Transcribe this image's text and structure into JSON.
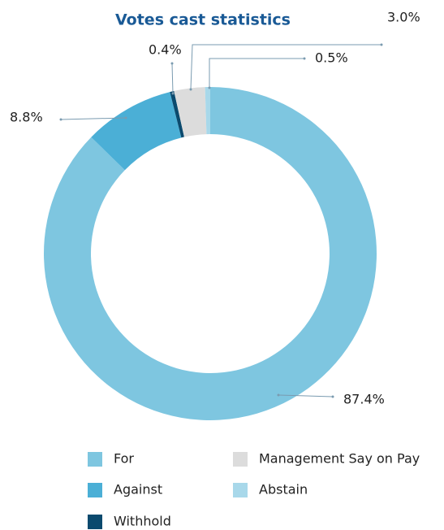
{
  "chart_data": {
    "type": "donut",
    "title": "Votes cast statistics",
    "categories": [
      "For",
      "Against",
      "Withhold",
      "Management Say on Pay",
      "Abstain"
    ],
    "values": [
      87.4,
      8.8,
      0.4,
      3.0,
      0.5
    ],
    "value_labels": [
      "87.4%",
      "8.8%",
      "0.4%",
      "3.0%",
      "0.5%"
    ],
    "colors": [
      "#7ec6e0",
      "#4bafd6",
      "#0b4a6e",
      "#dcdcdc",
      "#a8d8ea"
    ],
    "legend": "bottom"
  }
}
